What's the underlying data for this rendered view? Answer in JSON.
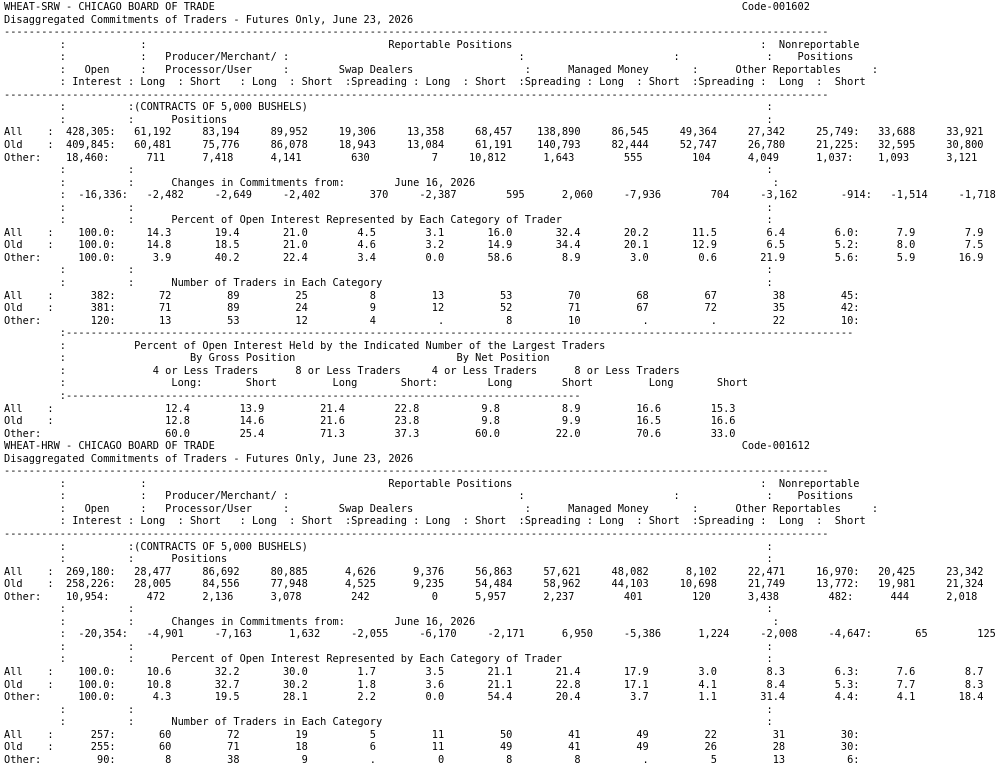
{
  "document": {
    "lines": [
      "WHEAT-SRW - CHICAGO BOARD OF TRADE                                                                                     Code-001602",
      "Disaggregated Commitments of Traders - Futures Only, June 23, 2026",
      "-------------------------------------------------------------------------------------------------------------------------------------",
      "         :            :                                       Reportable Positions                                        :  Nonreportable",
      "         :            :   Producer/Merchant/ :                                     :                        :              :    Positions",
      "         :   Open     :   Processor/User     :        Swap Dealers                  :      Managed Money       :      Other Reportables     :",
      "         : Interest : Long  : Short   : Long  : Short  :Spreading : Long  : Short  :Spreading : Long  : Short  :Spreading :  Long  :  Short",
      "-------------------------------------------------------------------------------------------------------------------------------------",
      "         :          :(CONTRACTS OF 5,000 BUSHELS)                                                                          :",
      "         :          :      Positions                                                                                       :",
      "All    :  428,305:   61,192     83,194     89,952     19,306     13,358     68,457    138,890     86,545     49,364     27,342     25,749:   33,688     33,921",
      "Old    :  409,845:   60,481     75,776     86,078     18,943     13,084     61,191    140,793     82,444     52,747     26,780     21,225:   32,595     30,800",
      "Other:    18,460:      711      7,418      4,141        630          7     10,812      1,643        555        104      4,049      1,037:    1,093      3,121",
      "         :          :                                                                                                      :",
      "         :          :      Changes in Commitments from:        June 16, 2026                                                :",
      "         :  -16,336:   -2,482     -2,649     -2,402        370     -2,387        595      2,060     -7,936        704     -3,162       -914:   -1,514     -1,718",
      "         :          :                                                                                                      :",
      "         :          :      Percent of Open Interest Represented by Each Category of Trader                                 :",
      "All    :    100.0:     14.3       19.4       21.0        4.5        3.1       16.0       32.4       20.2       11.5        6.4        6.0:      7.9        7.9",
      "Old    :    100.0:     14.8       18.5       21.0        4.6        3.2       14.9       34.4       20.1       12.9        6.5        5.2:      8.0        7.5",
      "Other:      100.0:      3.9       40.2       22.4        3.4        0.0       58.6        8.9        3.0        0.6       21.9        5.6:      5.9       16.9",
      "         :          :                                                                                                      :",
      "         :          :      Number of Traders in Each Category                                                              :",
      "All    :      382:       72         89         25          8         13         53         70         68         67         38         45:",
      "Old    :      381:       71         89         24          9         12         52         71         67         72         35         42:",
      "Other:        120:       13         53         12          4          .          8         10          .          .         22         10:",
      "         :-------------------------------------------------------------------------------------------------------------------------------",
      "         :           Percent of Open Interest Held by the Indicated Number of the Largest Traders",
      "         :                    By Gross Position                          By Net Position",
      "         :              4 or Less Traders      8 or Less Traders     4 or Less Traders      8 or Less Traders",
      "         :                 Long:       Short         Long       Short:        Long        Short         Long       Short",
      "         :-----------------------------------------------------------------------------------",
      "All    :                  12.4        13.9         21.4        22.8          9.8          8.9         16.6        15.3",
      "Old    :                  12.8        14.6         21.6        23.8          9.8          9.9         16.5        16.6",
      "Other:                    60.0        25.4         71.3        37.3         60.0         22.0         70.6        33.0",
      "WHEAT-HRW - CHICAGO BOARD OF TRADE                                                                                     Code-001612",
      "Disaggregated Commitments of Traders - Futures Only, June 23, 2026",
      "-------------------------------------------------------------------------------------------------------------------------------------",
      "         :            :                                       Reportable Positions                                        :  Nonreportable",
      "         :            :   Producer/Merchant/ :                                     :                        :              :    Positions",
      "         :   Open     :   Processor/User     :        Swap Dealers                  :      Managed Money       :      Other Reportables     :",
      "         : Interest : Long  : Short   : Long  : Short  :Spreading : Long  : Short  :Spreading : Long  : Short  :Spreading :  Long  :  Short",
      "-------------------------------------------------------------------------------------------------------------------------------------",
      "         :          :(CONTRACTS OF 5,000 BUSHELS)                                                                          :",
      "         :          :      Positions                                                                                       :",
      "All    :  269,180:   28,477     86,692     80,885      4,626      9,376     56,863     57,621     48,082      8,102     22,471     16,970:   20,425     23,342",
      "Old    :  258,226:   28,005     84,556     77,948      4,525      9,235     54,484     58,962     44,103     10,698     21,749     13,772:   19,981     21,324",
      "Other:    10,954:      472      2,136      3,078        242          0      5,957      2,237        401        120      3,438        482:      444      2,018",
      "         :          :                                                                                                      :",
      "         :          :      Changes in Commitments from:        June 16, 2026                                                :",
      "         :  -20,354:   -4,901     -7,163      1,632     -2,055     -6,170     -2,171      6,950     -5,386      1,224     -2,008     -4,647:       65        125",
      "         :          :                                                                                                      :",
      "         :          :      Percent of Open Interest Represented by Each Category of Trader                                 :",
      "All    :    100.0:     10.6       32.2       30.0        1.7        3.5       21.1       21.4       17.9        3.0        8.3        6.3:      7.6        8.7",
      "Old    :    100.0:     10.8       32.7       30.2        1.8        3.6       21.1       22.8       17.1        4.1        8.4        5.3:      7.7        8.3",
      "Other:      100.0:      4.3       19.5       28.1        2.2        0.0       54.4       20.4        3.7        1.1       31.4        4.4:      4.1       18.4",
      "         :          :                                                                                                      :",
      "         :          :      Number of Traders in Each Category                                                              :",
      "All    :      257:       60         72         19          5         11         50         41         49         22         31         30:",
      "Old    :      255:       60         71         18          6         11         49         41         49         26         28         30:",
      "Other:         90:        8         38          9          .          0          8          8          .          5         13          6:"
    ]
  }
}
